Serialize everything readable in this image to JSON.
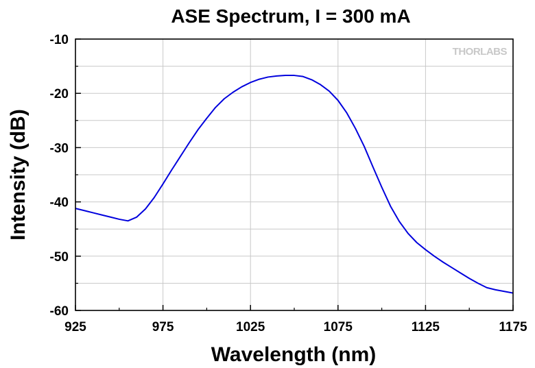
{
  "chart_data": {
    "type": "line",
    "title": "ASE Spectrum, I = 300 mA",
    "xlabel": "Wavelength (nm)",
    "ylabel": "Intensity (dB)",
    "xlim": [
      925,
      1175
    ],
    "ylim": [
      -60,
      -10
    ],
    "xticks": [
      925,
      975,
      1025,
      1075,
      1125,
      1175
    ],
    "yticks": [
      -60,
      -50,
      -40,
      -30,
      -20,
      -10
    ],
    "grid": true,
    "legend": "none",
    "watermark": "THORLABS",
    "series": [
      {
        "color": "#0000dd",
        "x": [
          925,
          930,
          935,
          940,
          945,
          950,
          955,
          960,
          965,
          970,
          975,
          980,
          985,
          990,
          995,
          1000,
          1005,
          1010,
          1015,
          1020,
          1025,
          1030,
          1035,
          1040,
          1045,
          1050,
          1055,
          1060,
          1065,
          1070,
          1075,
          1080,
          1085,
          1090,
          1095,
          1100,
          1105,
          1110,
          1115,
          1120,
          1125,
          1130,
          1135,
          1140,
          1145,
          1150,
          1155,
          1160,
          1165,
          1170,
          1175
        ],
        "y": [
          -41.2,
          -41.6,
          -42.0,
          -42.4,
          -42.8,
          -43.2,
          -43.5,
          -42.8,
          -41.3,
          -39.2,
          -36.7,
          -34.1,
          -31.6,
          -29.1,
          -26.7,
          -24.6,
          -22.6,
          -21.0,
          -19.8,
          -18.8,
          -18.0,
          -17.4,
          -17.0,
          -16.8,
          -16.7,
          -16.7,
          -16.9,
          -17.5,
          -18.4,
          -19.6,
          -21.3,
          -23.6,
          -26.5,
          -29.8,
          -33.6,
          -37.3,
          -40.8,
          -43.6,
          -45.8,
          -47.5,
          -48.8,
          -50.0,
          -51.1,
          -52.1,
          -53.1,
          -54.1,
          -55.0,
          -55.8,
          -56.2,
          -56.5,
          -56.8
        ]
      }
    ]
  }
}
